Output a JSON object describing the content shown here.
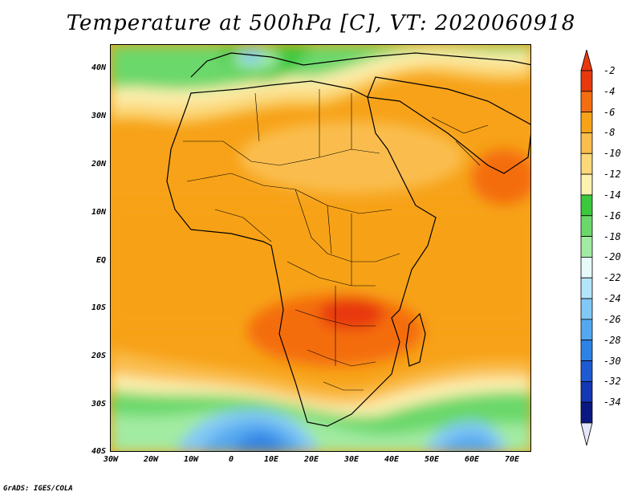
{
  "title": "Temperature at 500hPa [C], VT: 2020060918",
  "credit": "GrADS: IGES/COLA",
  "lat_labels": [
    "40N",
    "30N",
    "20N",
    "10N",
    "EQ",
    "10S",
    "20S",
    "30S",
    "40S"
  ],
  "lon_labels": [
    "30W",
    "20W",
    "10W",
    "0",
    "10E",
    "20E",
    "30E",
    "40E",
    "50E",
    "60E",
    "70E"
  ],
  "colorbar": {
    "labels": [
      "-2",
      "-4",
      "-6",
      "-8",
      "-10",
      "-12",
      "-14",
      "-16",
      "-18",
      "-20",
      "-22",
      "-24",
      "-26",
      "-28",
      "-30",
      "-32",
      "-34"
    ],
    "colors": [
      "#e8390e",
      "#f46d10",
      "#f7a218",
      "#fabd4e",
      "#fbd87a",
      "#fdf0b0",
      "#3cc83c",
      "#6bd86b",
      "#a2eba2",
      "#e6fafa",
      "#b4e6fa",
      "#82c8f5",
      "#55a8f0",
      "#2e82e6",
      "#1e5ad2",
      "#1437b4",
      "#0a1882"
    ],
    "low_end_color": "#e6e6fa"
  },
  "map": {
    "extent": {
      "lon_min": -30,
      "lon_max": 75,
      "lat_min": -40,
      "lat_max": 45
    },
    "field": "temperature",
    "level": "500hPa",
    "units": "C",
    "valid_time": "2020060918"
  }
}
